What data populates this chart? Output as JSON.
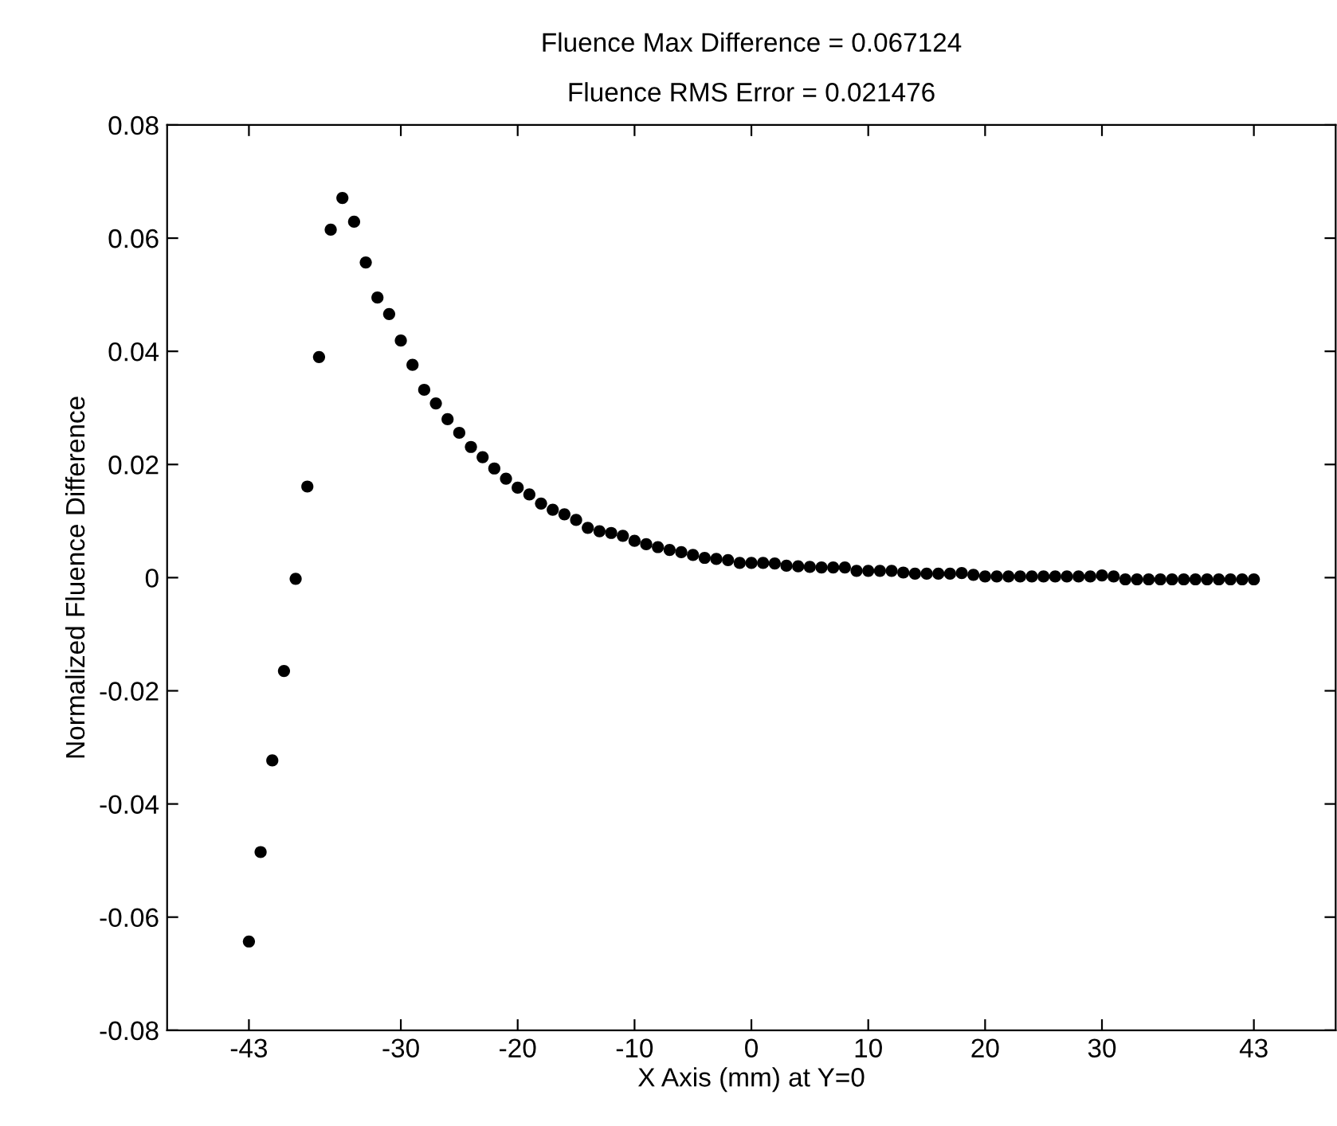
{
  "chart_data": {
    "type": "scatter",
    "title": "Fluence Max Difference = 0.067124",
    "subtitle": "Fluence RMS Error = 0.021476",
    "xlabel": "X Axis (mm) at Y=0",
    "ylabel": "Normalized Fluence Difference",
    "x": [
      -43,
      -42,
      -41,
      -40,
      -39,
      -38,
      -37,
      -36,
      -35,
      -34,
      -33,
      -32,
      -31,
      -30,
      -29,
      -28,
      -27,
      -26,
      -25,
      -24,
      -23,
      -22,
      -21,
      -20,
      -19,
      -18,
      -17,
      -16,
      -15,
      -14,
      -13,
      -12,
      -11,
      -10,
      -9,
      -8,
      -7,
      -6,
      -5,
      -4,
      -3,
      -2,
      -1,
      0,
      1,
      2,
      3,
      4,
      5,
      6,
      7,
      8,
      9,
      10,
      11,
      12,
      13,
      14,
      15,
      16,
      17,
      18,
      19,
      20,
      21,
      22,
      23,
      24,
      25,
      26,
      27,
      28,
      29,
      30,
      31,
      32,
      33,
      34,
      35,
      36,
      37,
      38,
      39,
      40,
      41,
      42,
      43
    ],
    "series": [
      {
        "color": "#000000",
        "values": [
          -0.0643,
          -0.0485,
          -0.0323,
          -0.0165,
          -0.0002,
          0.0161,
          0.039,
          0.0615,
          0.0671,
          0.0629,
          0.0557,
          0.0495,
          0.0466,
          0.0419,
          0.0376,
          0.0332,
          0.0308,
          0.028,
          0.0256,
          0.0231,
          0.0213,
          0.0193,
          0.0175,
          0.0159,
          0.0147,
          0.0131,
          0.012,
          0.0112,
          0.0102,
          0.0088,
          0.0082,
          0.0079,
          0.0074,
          0.0065,
          0.0059,
          0.0054,
          0.0049,
          0.0045,
          0.004,
          0.0035,
          0.0033,
          0.0031,
          0.0026,
          0.0026,
          0.0026,
          0.0025,
          0.0021,
          0.002,
          0.0019,
          0.0018,
          0.0018,
          0.0018,
          0.0012,
          0.0012,
          0.0012,
          0.0012,
          0.0009,
          0.0007,
          0.0007,
          0.0007,
          0.0007,
          0.0008,
          0.0005,
          0.0002,
          0.0002,
          0.0002,
          0.0002,
          0.0002,
          0.0002,
          0.0002,
          0.0002,
          0.0002,
          0.0002,
          0.0004,
          0.0002,
          -0.0003,
          -0.0003,
          -0.0003,
          -0.0003,
          -0.0003,
          -0.0003,
          -0.0003,
          -0.0003,
          -0.0003,
          -0.0003,
          -0.0003,
          -0.0003
        ]
      }
    ],
    "xlim": [
      -50,
      50
    ],
    "xticks": [
      -43,
      -30,
      -20,
      -10,
      0,
      10,
      20,
      30,
      43
    ],
    "ylim": [
      -0.08,
      0.08
    ],
    "yticks": [
      -0.08,
      -0.06,
      -0.04,
      -0.02,
      0,
      0.02,
      0.04,
      0.06,
      0.08
    ],
    "marker": "circle",
    "grid": false,
    "legend": false
  }
}
